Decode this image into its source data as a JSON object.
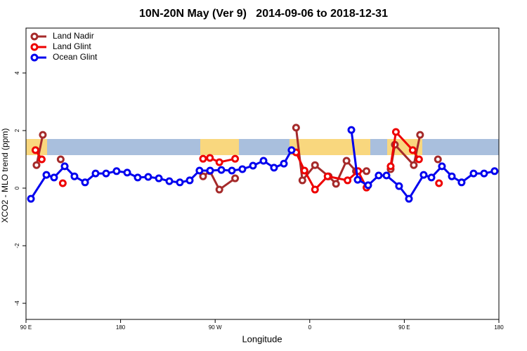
{
  "chart_data": {
    "type": "line",
    "title": "10N-20N May (Ver 9)   2014-09-06 to 2018-12-31",
    "x_label": "Longitude",
    "y_label": "XCO2 - MLO trend (ppm)",
    "xlim": [
      90,
      540
    ],
    "ylim": [
      -4.56,
      5.56
    ],
    "xticks": [
      {
        "value": 90,
        "label": "90 E"
      },
      {
        "value": 180,
        "label": "180"
      },
      {
        "value": 270,
        "label": "90 W"
      },
      {
        "value": 360,
        "label": "0"
      },
      {
        "value": 450,
        "label": "90 E"
      },
      {
        "value": 540,
        "label": "180"
      }
    ],
    "yticks": [
      -4,
      -2,
      0,
      2,
      4
    ],
    "legend": "top-left",
    "series": [
      {
        "name": "Land Nadir",
        "color": "#a52a2a",
        "x": [
          100,
          106,
          null,
          123,
          null,
          258.5,
          265,
          274,
          289,
          null,
          347,
          353,
          365,
          378,
          385,
          395,
          404,
          414,
          null,
          437,
          441,
          459,
          465,
          null,
          482
        ],
        "values": [
          0.8,
          1.85,
          null,
          1.0,
          null,
          0.41,
          0.59,
          -0.05,
          0.34,
          null,
          2.1,
          0.27,
          0.8,
          0.41,
          0.15,
          0.95,
          0.59,
          0.59,
          null,
          0.66,
          1.51,
          0.8,
          1.85,
          null,
          1.0
        ]
      },
      {
        "name": "Land Glint",
        "color": "#ee0000",
        "x": [
          99,
          105,
          null,
          125,
          null,
          258.5,
          265,
          274,
          289,
          null,
          347,
          355,
          365,
          377,
          396,
          406,
          414,
          null,
          437,
          442,
          458,
          464,
          null,
          483
        ],
        "values": [
          1.32,
          1.0,
          null,
          0.17,
          null,
          1.02,
          1.05,
          0.9,
          1.02,
          null,
          1.24,
          0.61,
          -0.05,
          0.41,
          0.27,
          0.59,
          0.02,
          null,
          0.76,
          1.95,
          1.32,
          1.0,
          null,
          0.17
        ]
      },
      {
        "name": "Ocean Glint",
        "color": "#0000ee",
        "x": [
          94.7,
          109.4,
          116.7,
          126.8,
          136.1,
          146.2,
          156.2,
          166.2,
          176.2,
          186.3,
          196.3,
          206.3,
          216.4,
          226.4,
          236.4,
          245.8,
          255.1,
          265.2,
          275.9,
          285.9,
          295.9,
          306,
          316,
          326,
          335.4,
          342.7,
          null,
          399.6,
          405.6,
          415.6,
          425.6,
          433,
          445,
          454.4,
          468.4,
          475.8,
          485.8,
          495.2,
          504.5,
          515.9,
          525.9,
          535.9
        ],
        "values": [
          -0.37,
          0.46,
          0.37,
          0.76,
          0.41,
          0.2,
          0.51,
          0.51,
          0.59,
          0.54,
          0.37,
          0.39,
          0.34,
          0.24,
          0.2,
          0.27,
          0.61,
          0.61,
          0.63,
          0.61,
          0.66,
          0.78,
          0.95,
          0.71,
          0.85,
          1.32,
          null,
          2.02,
          0.29,
          0.1,
          0.44,
          0.44,
          0.07,
          -0.37,
          0.46,
          0.37,
          0.76,
          0.41,
          0.2,
          0.51,
          0.51,
          0.59
        ]
      }
    ]
  }
}
